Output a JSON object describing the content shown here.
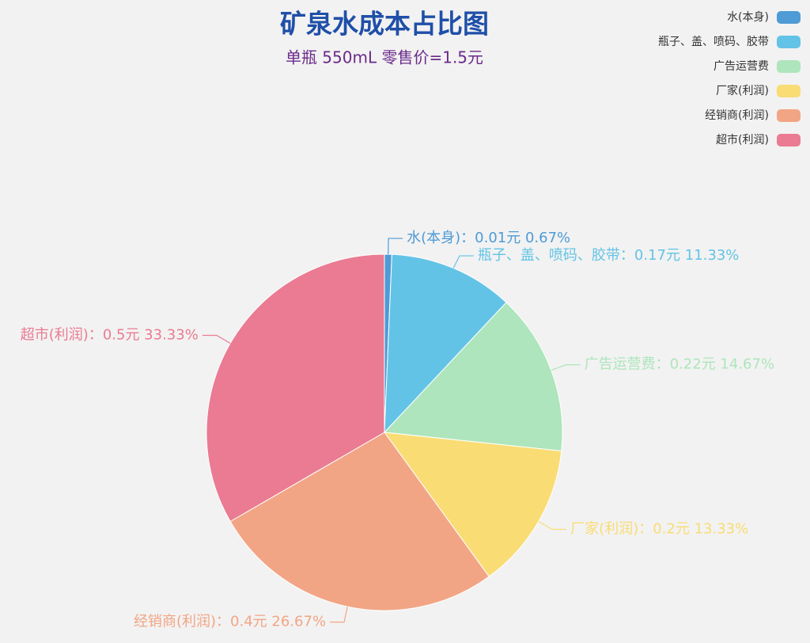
{
  "chart_data": {
    "type": "pie",
    "title": "矿泉水成本占比图",
    "subtitle": "单瓶 550mL 零售价=1.5元",
    "categories": [
      "水(本身)",
      "瓶子、盖、喷码、胶带",
      "广告运营费",
      "厂家(利润)",
      "经销商(利润)",
      "超市(利润)"
    ],
    "values": [
      0.01,
      0.17,
      0.22,
      0.2,
      0.4,
      0.5
    ],
    "value_labels": [
      "水(本身)：0.01元 0.67%",
      "瓶子、盖、喷码、胶带：0.17元 11.33%",
      "广告运营费：0.22元 14.67%",
      "厂家(利润)：0.2元 13.33%",
      "经销商(利润)：0.4元 26.67%",
      "超市(利润)：0.5元 33.33%"
    ],
    "colors": [
      "#4e9bd6",
      "#63c3e6",
      "#aee5bc",
      "#f9dc74",
      "#f2a585",
      "#ea7b92"
    ],
    "legend": "top-right"
  }
}
